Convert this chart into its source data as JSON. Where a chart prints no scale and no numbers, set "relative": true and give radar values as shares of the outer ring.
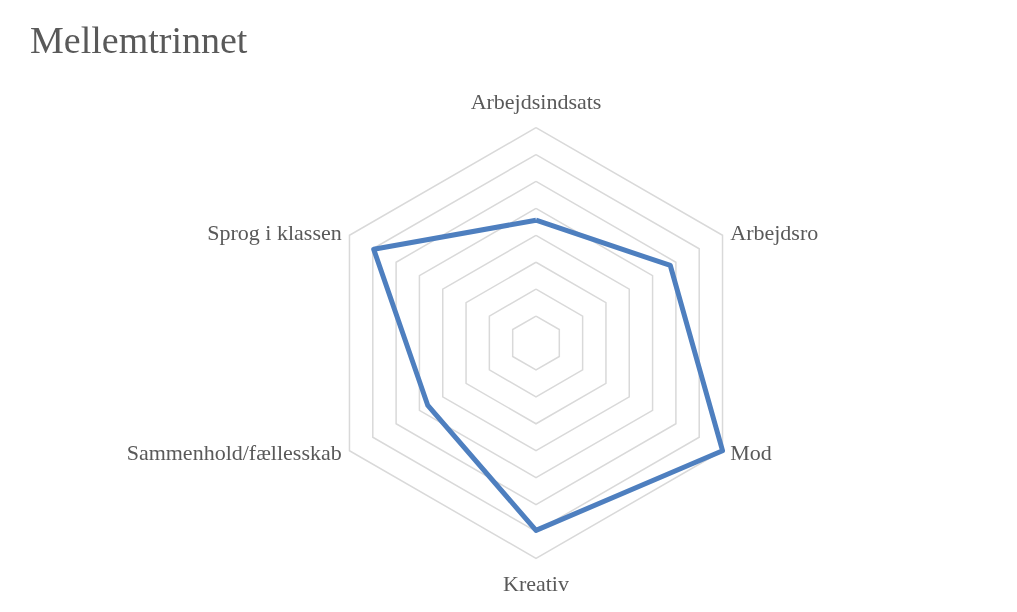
{
  "chart_data": {
    "type": "radar",
    "title": "Mellemtrinnet",
    "relative": true,
    "grid": true,
    "categories": [
      "Arbejdsindsats",
      "Arbejdsro",
      "Mod",
      "Kreativ",
      "Sammenhold/fællesskab",
      "Sprog i klassen"
    ],
    "series": [
      {
        "color": "#4e7fbf",
        "values": [
          0.57,
          0.72,
          1.0,
          0.87,
          0.58,
          0.87
        ]
      }
    ]
  }
}
